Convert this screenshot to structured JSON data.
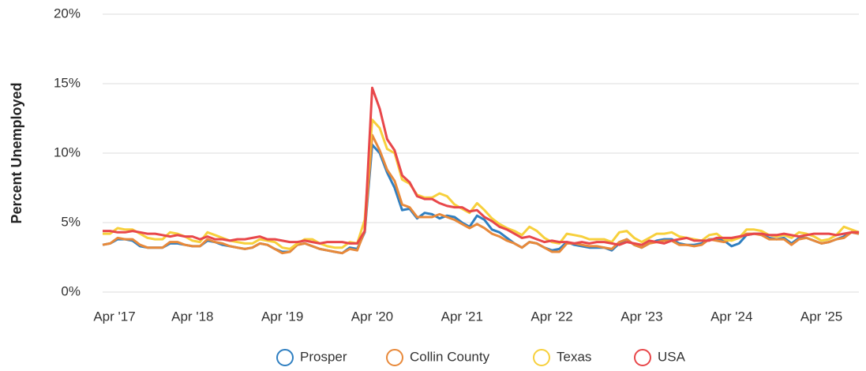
{
  "chart_data": {
    "type": "line",
    "y_label": "Percent Unemployed",
    "categories": [
      "Apr '17",
      null,
      null,
      null,
      null,
      null,
      null,
      null,
      null,
      null,
      null,
      null,
      "Apr '18",
      null,
      null,
      null,
      null,
      null,
      null,
      null,
      null,
      null,
      null,
      null,
      "Apr '19",
      null,
      null,
      null,
      null,
      null,
      null,
      null,
      null,
      null,
      null,
      null,
      "Apr '20",
      null,
      null,
      null,
      null,
      null,
      null,
      null,
      null,
      null,
      null,
      null,
      "Apr '21",
      null,
      null,
      null,
      null,
      null,
      null,
      null,
      null,
      null,
      null,
      null,
      "Apr '22",
      null,
      null,
      null,
      null,
      null,
      null,
      null,
      null,
      null,
      null,
      null,
      "Apr '23",
      null,
      null,
      null,
      null,
      null,
      null,
      null,
      null,
      null,
      null,
      null,
      "Apr '24",
      null,
      null,
      null,
      null,
      null,
      null,
      null,
      null,
      null,
      null,
      null,
      "Apr '25",
      null,
      null,
      null,
      null,
      null
    ],
    "series": [
      {
        "name": "Prosper",
        "color": "#2f7fc1",
        "values": [
          3.4,
          3.5,
          3.8,
          3.8,
          3.7,
          3.3,
          3.2,
          3.2,
          3.2,
          3.5,
          3.5,
          3.4,
          3.3,
          3.3,
          3.7,
          3.6,
          3.4,
          3.3,
          3.2,
          3.1,
          3.2,
          3.5,
          3.4,
          3.1,
          2.9,
          2.9,
          3.4,
          3.5,
          3.3,
          3.1,
          3.0,
          2.9,
          2.8,
          3.2,
          3.1,
          4.3,
          10.6,
          10.0,
          8.6,
          7.5,
          5.9,
          6.0,
          5.3,
          5.7,
          5.6,
          5.3,
          5.5,
          5.4,
          5.0,
          4.7,
          5.5,
          5.2,
          4.5,
          4.3,
          3.9,
          3.5,
          3.2,
          3.6,
          3.5,
          3.2,
          3.0,
          3.1,
          3.6,
          3.4,
          3.3,
          3.2,
          3.2,
          3.2,
          3.0,
          3.5,
          3.8,
          3.4,
          3.2,
          3.5,
          3.7,
          3.8,
          3.8,
          3.5,
          3.4,
          3.4,
          3.5,
          3.8,
          3.8,
          3.7,
          3.3,
          3.5,
          4.1,
          4.2,
          4.2,
          3.9,
          3.8,
          3.9,
          3.5,
          3.9,
          3.9,
          3.7,
          3.5,
          3.6,
          3.8,
          4.0,
          4.3,
          4.2
        ]
      },
      {
        "name": "Collin County",
        "color": "#e8893a",
        "values": [
          3.4,
          3.5,
          3.9,
          3.8,
          3.8,
          3.4,
          3.2,
          3.2,
          3.2,
          3.6,
          3.6,
          3.4,
          3.3,
          3.3,
          3.8,
          3.6,
          3.5,
          3.3,
          3.2,
          3.1,
          3.2,
          3.5,
          3.4,
          3.1,
          2.8,
          2.9,
          3.4,
          3.5,
          3.3,
          3.1,
          3.0,
          2.9,
          2.8,
          3.1,
          3.0,
          4.4,
          11.3,
          10.2,
          8.8,
          8.0,
          6.3,
          6.1,
          5.4,
          5.4,
          5.4,
          5.6,
          5.4,
          5.2,
          4.9,
          4.6,
          4.9,
          4.6,
          4.2,
          4.0,
          3.7,
          3.5,
          3.2,
          3.6,
          3.5,
          3.2,
          2.9,
          2.9,
          3.5,
          3.5,
          3.4,
          3.3,
          3.3,
          3.2,
          3.1,
          3.6,
          3.8,
          3.4,
          3.2,
          3.5,
          3.6,
          3.7,
          3.7,
          3.4,
          3.4,
          3.3,
          3.4,
          3.8,
          3.7,
          3.6,
          3.8,
          3.9,
          4.2,
          4.2,
          4.1,
          3.8,
          3.8,
          3.8,
          3.4,
          3.8,
          3.9,
          3.7,
          3.5,
          3.6,
          3.8,
          3.9,
          4.3,
          4.2
        ]
      },
      {
        "name": "Texas",
        "color": "#f7d03c",
        "values": [
          4.2,
          4.2,
          4.6,
          4.5,
          4.5,
          4.2,
          3.9,
          3.8,
          3.8,
          4.3,
          4.2,
          4.0,
          3.7,
          3.6,
          4.3,
          4.1,
          3.9,
          3.7,
          3.6,
          3.5,
          3.5,
          3.8,
          3.7,
          3.6,
          3.2,
          3.1,
          3.5,
          3.8,
          3.8,
          3.5,
          3.3,
          3.2,
          3.2,
          3.6,
          3.5,
          5.2,
          12.4,
          11.8,
          10.3,
          10.0,
          8.1,
          7.8,
          7.0,
          6.8,
          6.8,
          7.1,
          6.9,
          6.3,
          6.0,
          5.7,
          6.4,
          5.9,
          5.3,
          4.9,
          4.6,
          4.4,
          4.1,
          4.7,
          4.4,
          3.9,
          3.6,
          3.5,
          4.2,
          4.1,
          4.0,
          3.8,
          3.8,
          3.8,
          3.6,
          4.3,
          4.4,
          3.9,
          3.6,
          3.9,
          4.2,
          4.2,
          4.3,
          4.0,
          3.9,
          3.8,
          3.7,
          4.1,
          4.2,
          3.8,
          3.7,
          3.9,
          4.5,
          4.5,
          4.4,
          4.1,
          4.0,
          4.1,
          3.9,
          4.3,
          4.2,
          4.0,
          3.7,
          3.8,
          4.1,
          4.7,
          4.5,
          4.3
        ]
      },
      {
        "name": "USA",
        "color": "#e8474a",
        "values": [
          4.4,
          4.4,
          4.3,
          4.3,
          4.4,
          4.3,
          4.2,
          4.2,
          4.1,
          4.0,
          4.1,
          4.0,
          4.0,
          3.8,
          4.0,
          3.8,
          3.8,
          3.7,
          3.8,
          3.8,
          3.9,
          4.0,
          3.8,
          3.8,
          3.7,
          3.6,
          3.6,
          3.7,
          3.6,
          3.5,
          3.6,
          3.6,
          3.6,
          3.5,
          3.5,
          4.4,
          14.7,
          13.2,
          11.0,
          10.2,
          8.4,
          7.9,
          6.9,
          6.7,
          6.7,
          6.4,
          6.2,
          6.1,
          6.1,
          5.8,
          5.9,
          5.4,
          5.1,
          4.7,
          4.5,
          4.2,
          3.9,
          4.0,
          3.8,
          3.6,
          3.7,
          3.6,
          3.6,
          3.5,
          3.6,
          3.5,
          3.6,
          3.6,
          3.5,
          3.4,
          3.6,
          3.5,
          3.4,
          3.7,
          3.6,
          3.5,
          3.7,
          3.8,
          3.9,
          3.7,
          3.7,
          3.7,
          3.9,
          3.9,
          3.9,
          4.0,
          4.1,
          4.2,
          4.2,
          4.1,
          4.1,
          4.2,
          4.1,
          4.0,
          4.1,
          4.2,
          4.2,
          4.2,
          4.1,
          4.2,
          4.3,
          4.3
        ]
      }
    ],
    "ylim": [
      0,
      20
    ],
    "yticks": [
      {
        "value": 0,
        "label": "0%"
      },
      {
        "value": 5,
        "label": "5%"
      },
      {
        "value": 10,
        "label": "10%"
      },
      {
        "value": 15,
        "label": "15%"
      },
      {
        "value": 20,
        "label": "20%"
      }
    ],
    "grid": true,
    "legend": "bottom"
  }
}
